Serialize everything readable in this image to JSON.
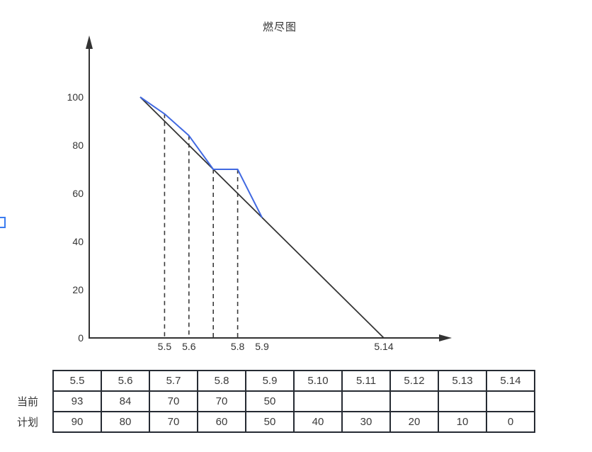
{
  "page": {
    "background": "#ffffff"
  },
  "chart_data": {
    "type": "line",
    "title": "燃尽图",
    "categories": [
      "5.5",
      "5.6",
      "5.7",
      "5.8",
      "5.9",
      "5.10",
      "5.11",
      "5.12",
      "5.13",
      "5.14"
    ],
    "start_point": {
      "category": "5.4",
      "value": 100
    },
    "series": [
      {
        "name": "当前",
        "color": "#4169e1",
        "values": [
          93,
          84,
          70,
          70,
          50,
          null,
          null,
          null,
          null,
          null
        ]
      },
      {
        "name": "计划",
        "color": "#333333",
        "values": [
          90,
          80,
          70,
          60,
          50,
          40,
          30,
          20,
          10,
          0
        ]
      }
    ],
    "ylim": [
      0,
      100
    ],
    "yticks": [
      0,
      20,
      40,
      60,
      80,
      100
    ],
    "x_axis_labels_shown": [
      "5.5",
      "5.6",
      "5.8",
      "5.9",
      "5.14"
    ],
    "dashed_guides_at": [
      "5.5",
      "5.6",
      "5.7",
      "5.8"
    ],
    "grid": false,
    "legend": false,
    "axis_color": "#333333",
    "guide_color": "#3a3a3a"
  },
  "edge_marker": {
    "color": "#3b7cf0"
  },
  "table": {
    "columns": [
      "5.5",
      "5.6",
      "5.7",
      "5.8",
      "5.9",
      "5.10",
      "5.11",
      "5.12",
      "5.13",
      "5.14"
    ],
    "rows": [
      {
        "label": "当前",
        "values": [
          "93",
          "84",
          "70",
          "70",
          "50",
          "",
          "",
          "",
          "",
          ""
        ]
      },
      {
        "label": "计划",
        "values": [
          "90",
          "80",
          "70",
          "60",
          "50",
          "40",
          "30",
          "20",
          "10",
          "0"
        ]
      }
    ]
  }
}
